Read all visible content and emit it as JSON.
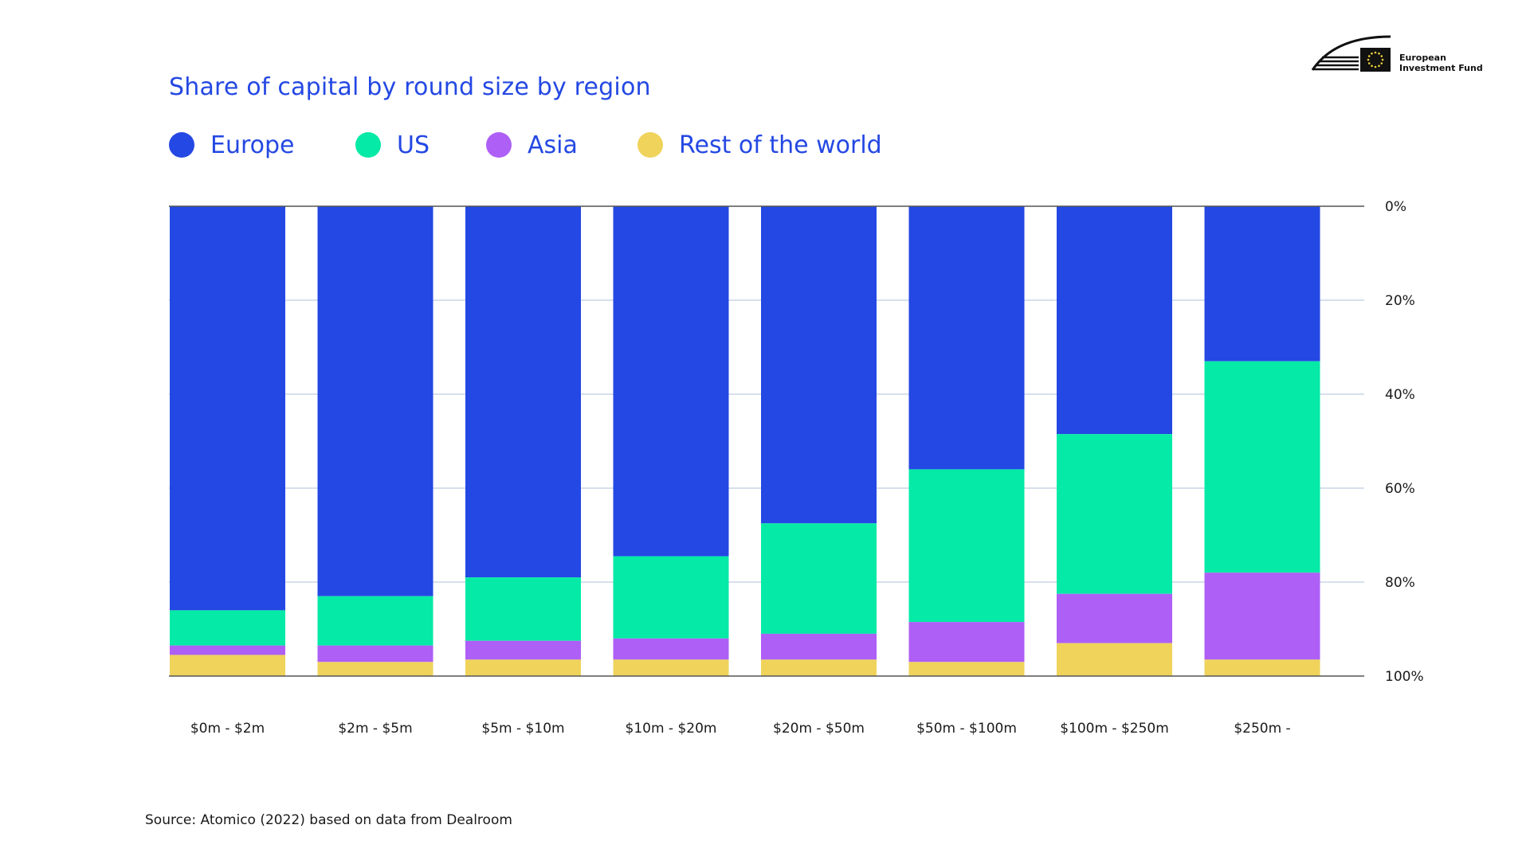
{
  "title": "Share of capital by round size by region",
  "legend": {
    "items": [
      {
        "label": "Europe",
        "color": "#2448e3"
      },
      {
        "label": "US",
        "color": "#05eaa7"
      },
      {
        "label": "Asia",
        "color": "#ae5ff6"
      },
      {
        "label": "Rest of the world",
        "color": "#efd35b"
      }
    ]
  },
  "logo": {
    "line1": "European",
    "line2": "Investment Fund",
    "icon": "eif-logo-icon"
  },
  "source": "Source: Atomico (2022) based on data from Dealroom",
  "chart_data": {
    "type": "bar",
    "stacked": true,
    "orientation": "vertical",
    "normalized": true,
    "title": "Share of capital by round size by region",
    "categories": [
      "$0m - $2m",
      "$2m - $5m",
      "$5m - $10m",
      "$10m - $20m",
      "$20m - $50m",
      "$50m - $100m",
      "$100m - $250m",
      "$250m -"
    ],
    "series": [
      {
        "name": "Europe",
        "color": "#2448e3",
        "values": [
          86,
          83,
          79,
          74.5,
          67.5,
          56,
          48.5,
          33
        ]
      },
      {
        "name": "US",
        "color": "#05eaa7",
        "values": [
          7.5,
          10.5,
          13.5,
          17.5,
          23.5,
          32.5,
          34,
          45
        ]
      },
      {
        "name": "Asia",
        "color": "#ae5ff6",
        "values": [
          2,
          3.5,
          4,
          4.5,
          5.5,
          8.5,
          10.5,
          18.5
        ]
      },
      {
        "name": "Rest of the world",
        "color": "#efd35b",
        "values": [
          4.5,
          3,
          3.5,
          3.5,
          3.5,
          3,
          7,
          3.5
        ]
      }
    ],
    "yaxis": {
      "ticks": [
        0,
        20,
        40,
        60,
        80,
        100
      ],
      "tick_labels": [
        "0%",
        "20%",
        "40%",
        "60%",
        "80%",
        "100%"
      ],
      "position": "right",
      "inverted": true,
      "ylim": [
        0,
        100
      ]
    },
    "grid": true,
    "xlabel": "",
    "ylabel": ""
  }
}
